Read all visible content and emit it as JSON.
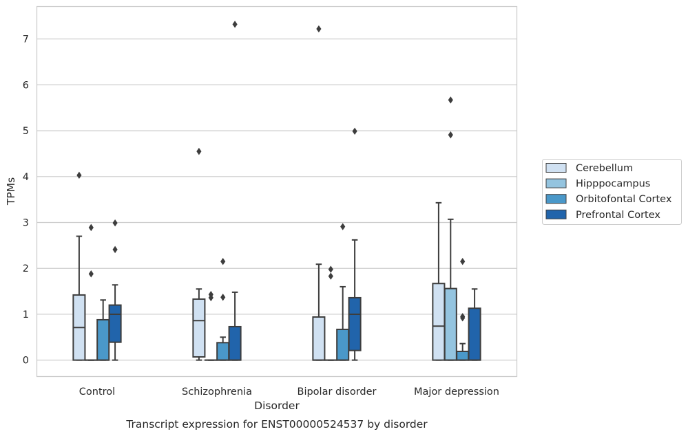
{
  "chart_data": {
    "type": "boxplot",
    "caption": "Transcript expression for ENST00000524537 by disorder",
    "xlabel": "Disorder",
    "ylabel": "TPMs",
    "ylim": [
      -0.35,
      7.7
    ],
    "yticks": [
      0,
      1,
      2,
      3,
      4,
      5,
      6,
      7
    ],
    "grid": "horizontal",
    "legend_position": "right",
    "categories": [
      "Control",
      "Schizophrenia",
      "Bipolar disorder",
      "Major depression"
    ],
    "series": [
      {
        "name": "Cerebellum",
        "color": "#d0e1f2",
        "boxes": [
          {
            "whislo": 0,
            "q1": 0,
            "med": 0.71,
            "q3": 1.42,
            "whishi": 2.7,
            "fliers": [
              4.03
            ]
          },
          {
            "whislo": 0,
            "q1": 0.07,
            "med": 0.86,
            "q3": 1.33,
            "whishi": 1.55,
            "fliers": [
              4.55
            ]
          },
          {
            "whislo": 0,
            "q1": 0,
            "med": 0,
            "q3": 0.94,
            "whishi": 2.09,
            "fliers": [
              7.22
            ]
          },
          {
            "whislo": 0,
            "q1": 0,
            "med": 0.74,
            "q3": 1.67,
            "whishi": 3.43,
            "fliers": []
          }
        ]
      },
      {
        "name": "Hipppocampus",
        "color": "#94c4df",
        "boxes": [
          {
            "whislo": 0,
            "q1": 0,
            "med": 0,
            "q3": 0,
            "whishi": 0,
            "fliers": [
              2.89,
              1.88
            ]
          },
          {
            "whislo": 0,
            "q1": 0,
            "med": 0,
            "q3": 0,
            "whishi": 0,
            "fliers": [
              1.43,
              1.36
            ]
          },
          {
            "whislo": 0,
            "q1": 0,
            "med": 0,
            "q3": 0,
            "whishi": 0,
            "fliers": [
              1.98,
              1.83
            ]
          },
          {
            "whislo": 0,
            "q1": 0,
            "med": 0,
            "q3": 1.56,
            "whishi": 3.07,
            "fliers": [
              5.67,
              4.91
            ]
          }
        ]
      },
      {
        "name": "Orbitofontal Cortex",
        "color": "#4a98c9",
        "boxes": [
          {
            "whislo": 0,
            "q1": 0,
            "med": 0,
            "q3": 0.88,
            "whishi": 1.31,
            "fliers": []
          },
          {
            "whislo": 0,
            "q1": 0,
            "med": 0,
            "q3": 0.38,
            "whishi": 0.5,
            "fliers": [
              2.15,
              1.37
            ]
          },
          {
            "whislo": 0,
            "q1": 0,
            "med": 0,
            "q3": 0.67,
            "whishi": 1.6,
            "fliers": [
              2.91
            ]
          },
          {
            "whislo": 0,
            "q1": 0,
            "med": 0,
            "q3": 0.19,
            "whishi": 0.36,
            "fliers": [
              2.15,
              0.95,
              0.92
            ]
          }
        ]
      },
      {
        "name": "Prefrontal Cortex",
        "color": "#2164ab",
        "boxes": [
          {
            "whislo": 0,
            "q1": 0.39,
            "med": 1.0,
            "q3": 1.2,
            "whishi": 1.64,
            "fliers": [
              2.99,
              2.41
            ]
          },
          {
            "whislo": 0,
            "q1": 0,
            "med": 0,
            "q3": 0.73,
            "whishi": 1.48,
            "fliers": [
              7.32
            ]
          },
          {
            "whislo": 0,
            "q1": 0.21,
            "med": 1.0,
            "q3": 1.36,
            "whishi": 2.62,
            "fliers": [
              4.99
            ]
          },
          {
            "whislo": 0,
            "q1": 0,
            "med": 0,
            "q3": 1.13,
            "whishi": 1.55,
            "fliers": []
          }
        ]
      }
    ]
  }
}
